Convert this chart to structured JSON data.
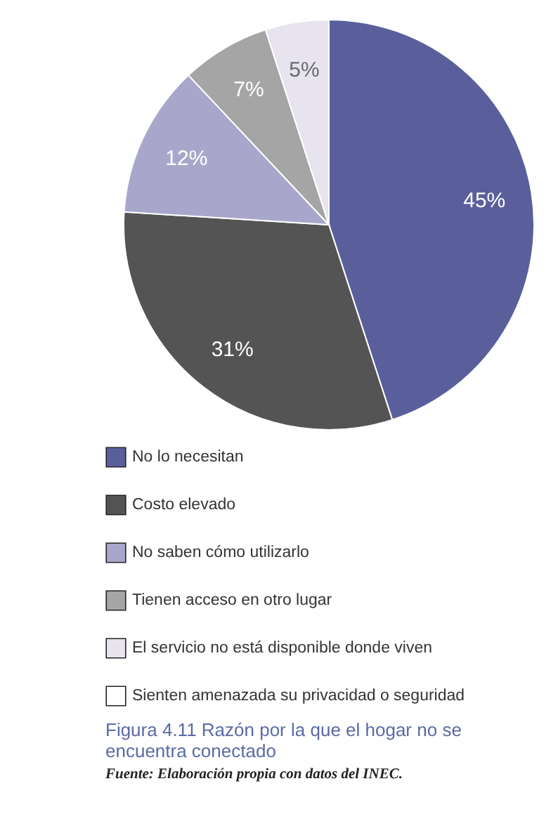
{
  "chart_data": {
    "type": "pie",
    "title": "Figura 4.11 Razón por la que el hogar no se encuentra conectado",
    "categories": [
      "No lo necesitan",
      "Costo elevado",
      "No saben cómo utilizarlo",
      "Tienen acceso en otro lugar",
      "El servicio no está disponible donde viven",
      "Sienten amenazada su privacidad o seguridad"
    ],
    "values": [
      45,
      31,
      12,
      7,
      5,
      0
    ],
    "value_labels": [
      "45%",
      "31%",
      "12%",
      "7%",
      "5%",
      null
    ],
    "colors": [
      "#5a5f9c",
      "#545454",
      "#a8a7cb",
      "#a5a5a5",
      "#e7e3ef",
      "#ffffff"
    ],
    "legend": "bottom",
    "annotations": [
      "Fuente: Elaboración propia con datos del INEC."
    ]
  }
}
